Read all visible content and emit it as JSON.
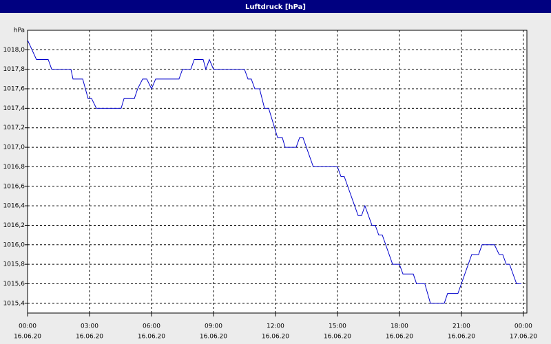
{
  "chart_data": {
    "type": "line",
    "title": "Luftdruck [hPa]",
    "y_unit": "hPa",
    "x": [
      0,
      0.43,
      1,
      1.17,
      2.1,
      2.2,
      2.67,
      2.93,
      3.1,
      3.33,
      4.53,
      4.67,
      5.17,
      5.33,
      5.57,
      5.77,
      6,
      6.2,
      7.33,
      7.5,
      7.9,
      8.07,
      8.5,
      8.63,
      8.8,
      9,
      10.5,
      10.67,
      10.83,
      11,
      11.23,
      11.47,
      11.67,
      12.1,
      12.33,
      12.47,
      13,
      13.17,
      13.33,
      13.83,
      15,
      15.17,
      15.33,
      16,
      16.17,
      16.33,
      16.67,
      16.83,
      17,
      17.17,
      17.67,
      18,
      18.17,
      18.67,
      18.83,
      19.23,
      19.5,
      20.17,
      20.33,
      20.83,
      21.5,
      21.83,
      22,
      22.6,
      22.83,
      23,
      23.17,
      23.33,
      23.67,
      23.9
    ],
    "series": [
      {
        "name": "Luftdruck",
        "color": "#0000cc",
        "values": [
          1018.1,
          1017.9,
          1017.9,
          1017.8,
          1017.8,
          1017.7,
          1017.7,
          1017.5,
          1017.5,
          1017.4,
          1017.4,
          1017.5,
          1017.5,
          1017.6,
          1017.7,
          1017.7,
          1017.6,
          1017.7,
          1017.7,
          1017.8,
          1017.8,
          1017.9,
          1017.9,
          1017.8,
          1017.9,
          1017.8,
          1017.8,
          1017.7,
          1017.7,
          1017.6,
          1017.6,
          1017.4,
          1017.4,
          1017.1,
          1017.1,
          1017.0,
          1017.0,
          1017.1,
          1017.1,
          1016.8,
          1016.8,
          1016.7,
          1016.7,
          1016.3,
          1016.3,
          1016.4,
          1016.2,
          1016.2,
          1016.1,
          1016.1,
          1015.8,
          1015.8,
          1015.7,
          1015.7,
          1015.6,
          1015.6,
          1015.4,
          1015.4,
          1015.5,
          1015.5,
          1015.9,
          1015.9,
          1016.0,
          1016.0,
          1015.9,
          1015.9,
          1015.8,
          1015.8,
          1015.6,
          1015.6
        ]
      }
    ],
    "xlim": [
      0,
      24.17
    ],
    "xticks": [
      {
        "value": 0,
        "label": "00:00"
      },
      {
        "value": 3,
        "label": "03:00"
      },
      {
        "value": 6,
        "label": "06:00"
      },
      {
        "value": 9,
        "label": "09:00"
      },
      {
        "value": 12,
        "label": "12:00"
      },
      {
        "value": 15,
        "label": "15:00"
      },
      {
        "value": 18,
        "label": "18:00"
      },
      {
        "value": 21,
        "label": "21:00"
      },
      {
        "value": 24,
        "label": "00:00"
      }
    ],
    "xtick_dates": [
      "16.06.20",
      "16.06.20",
      "16.06.20",
      "16.06.20",
      "16.06.20",
      "16.06.20",
      "16.06.20",
      "16.06.20",
      "17.06.20"
    ],
    "ylim": [
      1015.3,
      1018.2
    ],
    "yticks": [
      {
        "value": 1015.4,
        "label": "1015,4"
      },
      {
        "value": 1015.6,
        "label": "1015,6"
      },
      {
        "value": 1015.8,
        "label": "1015,8"
      },
      {
        "value": 1016.0,
        "label": "1016,0"
      },
      {
        "value": 1016.2,
        "label": "1016,2"
      },
      {
        "value": 1016.4,
        "label": "1016,4"
      },
      {
        "value": 1016.6,
        "label": "1016,6"
      },
      {
        "value": 1016.8,
        "label": "1016,8"
      },
      {
        "value": 1017.0,
        "label": "1017,0"
      },
      {
        "value": 1017.2,
        "label": "1017,2"
      },
      {
        "value": 1017.4,
        "label": "1017,4"
      },
      {
        "value": 1017.6,
        "label": "1017,6"
      },
      {
        "value": 1017.8,
        "label": "1017,8"
      },
      {
        "value": 1018.0,
        "label": "1018,0"
      }
    ],
    "grid": true
  }
}
